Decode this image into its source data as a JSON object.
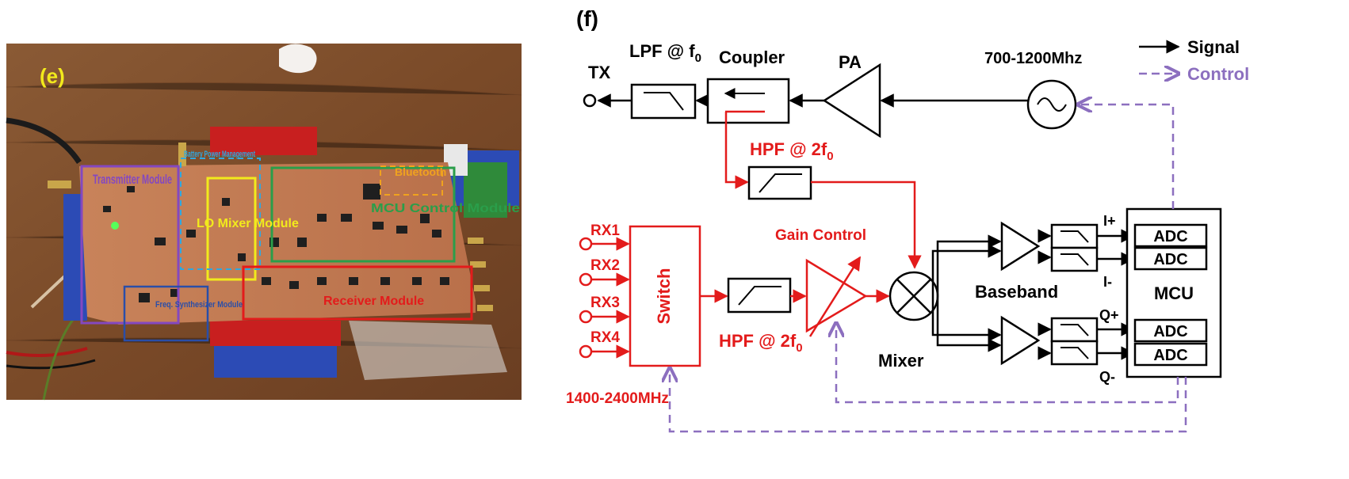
{
  "photo": {
    "panel_label": "(e)",
    "modules": {
      "transmitter": "Transmitter Module",
      "battery": "Battery Power Management",
      "bluetooth": "Bluetooth",
      "mcu": "MCU Control Module",
      "lo_mixer": "LO Mixer Module",
      "freq_synth": "Freq. Synthesizer Module",
      "receiver": "Receiver Module"
    }
  },
  "diagram": {
    "panel_label": "(f)",
    "legend": {
      "signal": "Signal",
      "control": "Control"
    },
    "tx": "TX",
    "lpf": "LPF @ f",
    "lpf_sub": "0",
    "coupler": "Coupler",
    "pa": "PA",
    "osc": "700-1200Mhz",
    "hpf_top": "HPF @ 2f",
    "hpf_top_sub": "0",
    "hpf_bottom": "HPF @ 2f",
    "hpf_bottom_sub": "0",
    "gain_control": "Gain Control",
    "mixer": "Mixer",
    "baseband": "Baseband",
    "switch": "Switch",
    "rx": [
      "RX1",
      "RX2",
      "RX3",
      "RX4"
    ],
    "rx_band": "1400-2400MHz",
    "mcu": "MCU",
    "adc": [
      "ADC",
      "ADC",
      "ADC",
      "ADC"
    ],
    "outputs": [
      "I+",
      "I-",
      "Q+",
      "Q-"
    ]
  },
  "colors": {
    "signal": "#000000",
    "rx_path": "#e31b1b",
    "control": "#8c6fbf",
    "yellow": "#f2ea1c"
  }
}
